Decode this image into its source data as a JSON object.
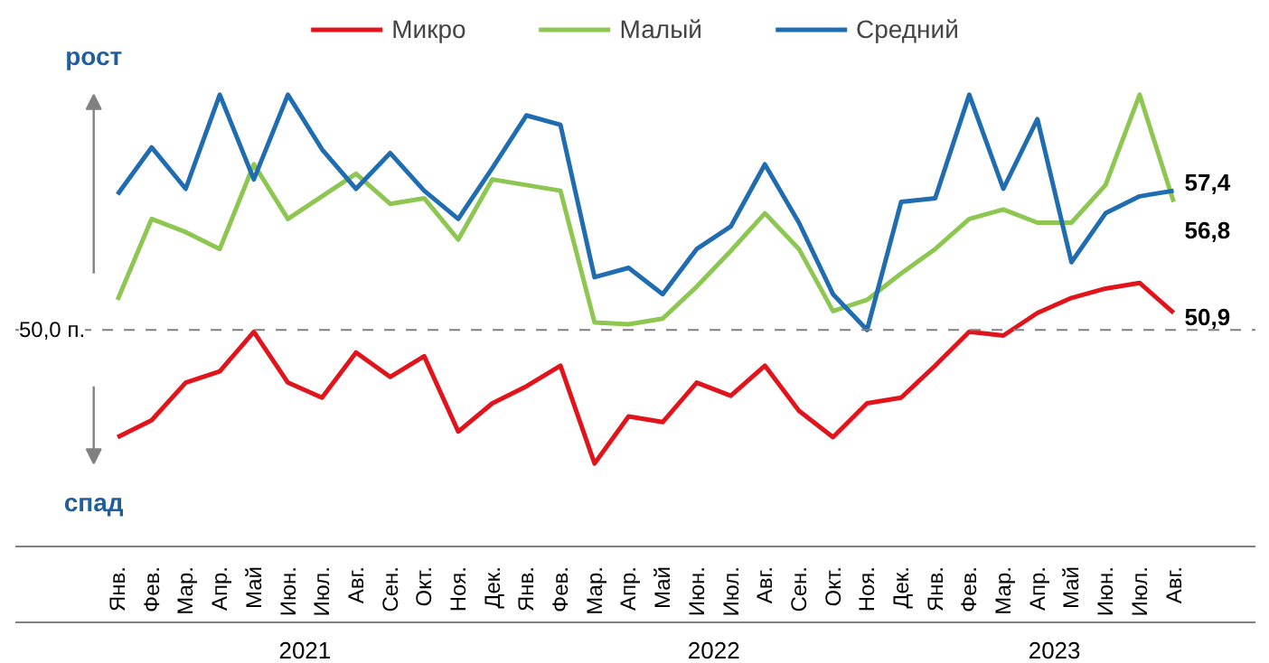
{
  "chart_data": {
    "type": "line",
    "categories": [
      "Янв.",
      "Фев.",
      "Мар.",
      "Апр.",
      "Май",
      "Июн.",
      "Июл.",
      "Авг.",
      "Сен.",
      "Окт.",
      "Ноя.",
      "Дек.",
      "Янв.",
      "Фев.",
      "Мар.",
      "Апр.",
      "Май",
      "Июн.",
      "Июл.",
      "Авг.",
      "Сен.",
      "Окт.",
      "Ноя.",
      "Дек.",
      "Янв.",
      "Фев.",
      "Мар.",
      "Апр.",
      "Май",
      "Июн.",
      "Июл.",
      "Авг."
    ],
    "series": [
      {
        "name": "Микро",
        "color": "#e2141b",
        "values": [
          44.3,
          45.2,
          47.2,
          47.8,
          49.9,
          47.2,
          46.4,
          48.8,
          47.5,
          48.6,
          44.6,
          46.1,
          47.0,
          48.1,
          42.9,
          45.4,
          45.1,
          47.2,
          46.5,
          48.1,
          45.7,
          44.3,
          46.1,
          46.4,
          48.1,
          49.9,
          49.7,
          50.9,
          51.7,
          52.2,
          52.5,
          50.9
        ],
        "value_labels": [
          null,
          null,
          null,
          null,
          null,
          null,
          null,
          null,
          null,
          null,
          null,
          null,
          null,
          null,
          null,
          null,
          null,
          null,
          null,
          null,
          null,
          null,
          null,
          null,
          null,
          null,
          null,
          null,
          null,
          null,
          null,
          "50,9"
        ]
      },
      {
        "name": "Малый",
        "color": "#8dc650",
        "values": [
          51.6,
          55.9,
          55.2,
          54.3,
          58.8,
          55.9,
          57.1,
          58.3,
          56.7,
          57.0,
          54.8,
          58.0,
          57.7,
          57.4,
          50.4,
          50.3,
          50.6,
          52.3,
          54.2,
          56.2,
          54.3,
          51.0,
          51.6,
          53.0,
          54.3,
          55.9,
          56.4,
          55.7,
          55.7,
          57.7,
          62.5,
          56.8
        ],
        "value_labels": [
          null,
          null,
          null,
          null,
          null,
          null,
          null,
          null,
          null,
          null,
          null,
          null,
          null,
          null,
          null,
          null,
          null,
          null,
          null,
          null,
          null,
          null,
          null,
          null,
          null,
          null,
          null,
          null,
          null,
          null,
          null,
          "56,8"
        ]
      },
      {
        "name": "Средний",
        "color": "#1f6db0",
        "values": [
          57.2,
          59.7,
          57.5,
          62.5,
          58.0,
          62.5,
          59.6,
          57.5,
          59.4,
          57.4,
          55.9,
          58.6,
          61.4,
          60.9,
          52.8,
          53.3,
          51.9,
          54.3,
          55.5,
          58.8,
          55.7,
          51.9,
          50.0,
          56.8,
          57.0,
          62.5,
          57.5,
          61.2,
          53.6,
          56.2,
          57.1,
          57.4
        ],
        "value_labels": [
          null,
          null,
          null,
          null,
          null,
          null,
          null,
          null,
          null,
          null,
          null,
          null,
          null,
          null,
          null,
          null,
          null,
          null,
          null,
          null,
          null,
          null,
          null,
          null,
          null,
          null,
          null,
          null,
          null,
          null,
          null,
          "57,4"
        ]
      }
    ],
    "ref_lines": [
      {
        "axis": "y",
        "value": 50,
        "label": "50,0 п.",
        "color": "#808080",
        "line_style": "dashed"
      }
    ],
    "annotations": [
      "2021",
      "2022",
      "2023",
      "рост",
      "спад"
    ],
    "legend": "top",
    "grid": false,
    "marker": "none",
    "line_style": "solid"
  }
}
